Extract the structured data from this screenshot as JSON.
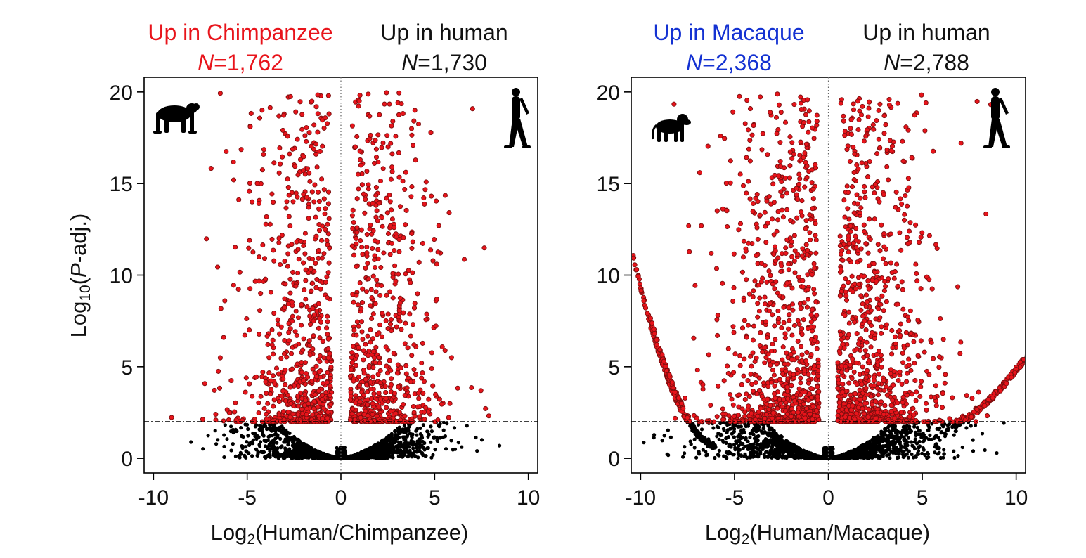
{
  "chart_data": [
    {
      "type": "scatter",
      "subtype": "volcano",
      "up_left": {
        "label": "Up in Chimpanzee",
        "n_prefix": "N",
        "n_value": "=1,762",
        "color": "#e8141b"
      },
      "up_right": {
        "label": "Up in human",
        "n_prefix": "N",
        "n_value": "=1,730",
        "color": "#111111"
      },
      "xlabel": {
        "pre": "Log",
        "sub": "2",
        "post": "(Human/Chimpanzee)"
      },
      "ylabel": {
        "pre": "Log",
        "sub": "10",
        "open": "(",
        "italic": "P",
        "post": "-adj.)"
      },
      "xlim": [
        -10.5,
        10.5
      ],
      "ylim": [
        -0.8,
        20.8
      ],
      "xticks": [
        -10,
        -5,
        0,
        5,
        10
      ],
      "yticks": [
        0,
        5,
        10,
        15,
        20
      ],
      "threshold_y": 2,
      "reference_x": 0,
      "significant_color": "#e8141b",
      "significant_edge_color": "#7a0e0e",
      "nonsignificant_color": "#000000",
      "left_icon": "chimpanzee-icon",
      "right_icon": "human-icon",
      "has_mirror_curve": false
    },
    {
      "type": "scatter",
      "subtype": "volcano",
      "up_left": {
        "label": "Up in Macaque",
        "n_prefix": "N",
        "n_value": "=2,368",
        "color": "#1432d2"
      },
      "up_right": {
        "label": "Up in human",
        "n_prefix": "N",
        "n_value": "=2,788",
        "color": "#111111"
      },
      "xlabel": {
        "pre": "Log",
        "sub": "2",
        "post": "(Human/Macaque)"
      },
      "xlim": [
        -10.5,
        10.5
      ],
      "ylim": [
        -0.8,
        20.8
      ],
      "xticks": [
        -10,
        -5,
        0,
        5,
        10
      ],
      "yticks": [
        0,
        5,
        10,
        15,
        20
      ],
      "threshold_y": 2,
      "reference_x": 0,
      "significant_color": "#e8141b",
      "significant_edge_color": "#7a0e0e",
      "nonsignificant_color": "#000000",
      "left_icon": "macaque-icon",
      "right_icon": "human-icon",
      "has_mirror_curve": true
    }
  ]
}
